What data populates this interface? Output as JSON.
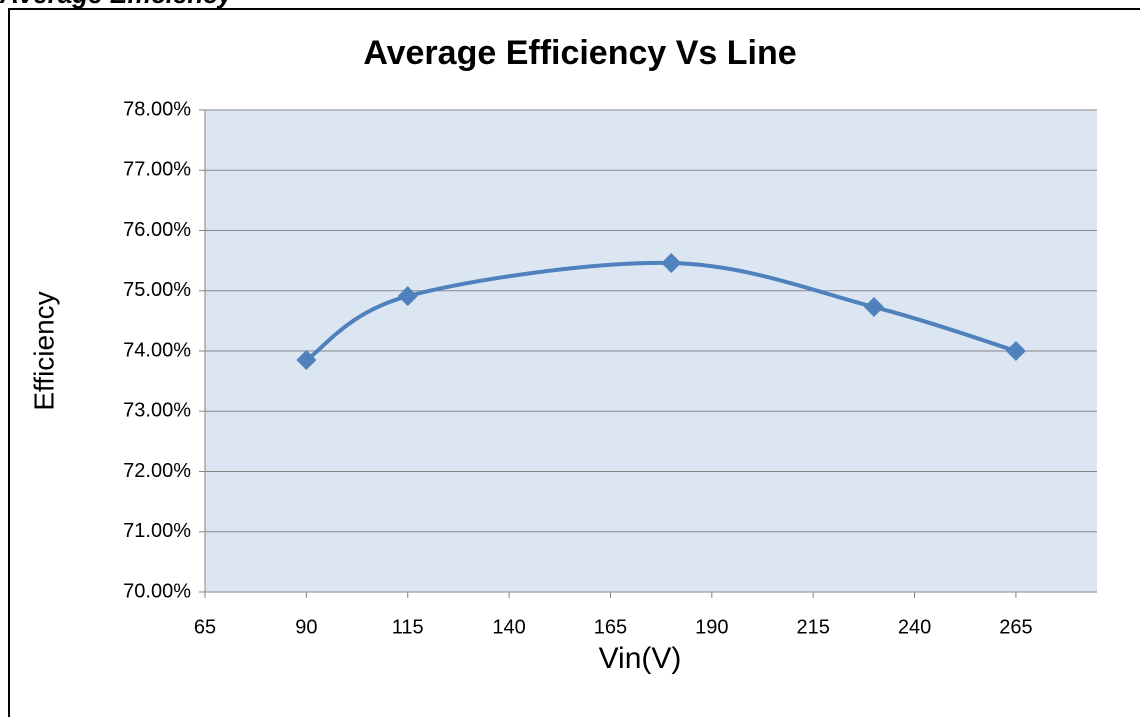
{
  "heading": "Average Efficiency",
  "chart_data": {
    "type": "line",
    "title": "Average Efficiency Vs Line",
    "x_label": "Vin(V)",
    "y_label": "Efficiency",
    "x": [
      90,
      115,
      180,
      230,
      265
    ],
    "series": [
      {
        "name": "Efficiency",
        "color": "#4f81bd",
        "values": [
          73.85,
          74.91,
          75.46,
          74.73,
          74.0
        ]
      }
    ],
    "xlim": [
      65,
      285
    ],
    "xticks": [
      65,
      90,
      115,
      140,
      165,
      190,
      215,
      240,
      265
    ],
    "ylim": [
      70,
      78
    ],
    "yticks": [
      {
        "value": 70,
        "label": "70.00%"
      },
      {
        "value": 71,
        "label": "71.00%"
      },
      {
        "value": 72,
        "label": "72.00%"
      },
      {
        "value": 73,
        "label": "73.00%"
      },
      {
        "value": 74,
        "label": "74.00%"
      },
      {
        "value": 75,
        "label": "75.00%"
      },
      {
        "value": 76,
        "label": "76.00%"
      },
      {
        "value": 77,
        "label": "77.00%"
      },
      {
        "value": 78,
        "label": "78.00%"
      }
    ],
    "grid": true,
    "smooth": true
  }
}
